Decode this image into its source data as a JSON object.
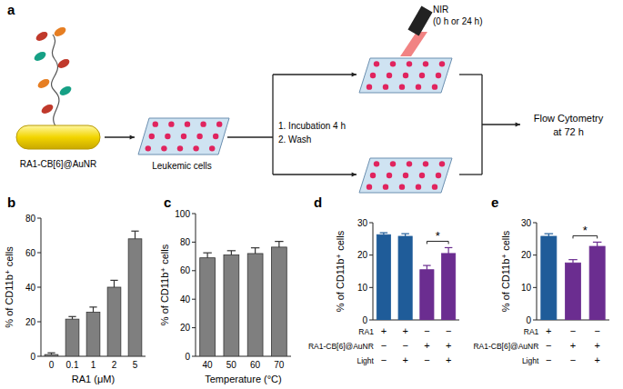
{
  "panel_a": {
    "label": "a",
    "nanoparticle": "RA1-CB[6]@AuNR",
    "cells": "Leukemic cells",
    "steps": [
      "1. Incubation 4 h",
      "2. Wash"
    ],
    "light": "NIR",
    "light_times": "(0 h or 24 h)",
    "readout": [
      "Flow Cytometry",
      "at 72 h"
    ]
  },
  "chart_data": [
    {
      "type": "bar",
      "title": "b",
      "x_label": "RA1 (μM)",
      "y_label": "% of CD11b⁺ cells",
      "categories": [
        "0",
        "0.1",
        "1",
        "2",
        "5"
      ],
      "values": [
        1,
        21.5,
        25.5,
        40,
        68
      ],
      "errors": [
        1,
        1.5,
        3,
        4,
        4.5
      ],
      "color": "#7f7f7f",
      "ylim": [
        0,
        80
      ],
      "yticks": [
        0,
        20,
        40,
        60,
        80
      ]
    },
    {
      "type": "bar",
      "title": "c",
      "x_label": "Temperature (°C)",
      "y_label": "% of CD11b⁺ cells",
      "categories": [
        "40",
        "50",
        "60",
        "70"
      ],
      "values": [
        69,
        71,
        72,
        76.5
      ],
      "errors": [
        3.5,
        3,
        4,
        4
      ],
      "color": "#7f7f7f",
      "ylim": [
        0,
        100
      ],
      "yticks": [
        0,
        20,
        40,
        60,
        80,
        100
      ]
    },
    {
      "type": "bar",
      "title": "d",
      "y_label": "% of CD11b⁺ cells",
      "categories": [
        null,
        null,
        null,
        null
      ],
      "values": [
        26.3,
        25.8,
        15.5,
        20.5
      ],
      "errors": [
        0.6,
        0.8,
        1.3,
        1.8
      ],
      "colors": [
        "#1f5c99",
        "#1f5c99",
        "#6b2d90",
        "#6b2d90"
      ],
      "ylim": [
        0,
        30
      ],
      "yticks": [
        0,
        10,
        20,
        30
      ],
      "conditions": [
        {
          "label": "RA1",
          "values": [
            "+",
            "+",
            "−",
            "−"
          ]
        },
        {
          "label": "RA1-CB[6]@AuNR",
          "values": [
            "−",
            "−",
            "+",
            "+"
          ]
        },
        {
          "label": "Light",
          "values": [
            "−",
            "+",
            "−",
            "+"
          ]
        }
      ],
      "significance": {
        "text": "*",
        "between": [
          2,
          3
        ]
      }
    },
    {
      "type": "bar",
      "title": "e",
      "y_label": "% of CD11b⁺ cells",
      "categories": [
        null,
        null,
        null
      ],
      "values": [
        25.8,
        17.6,
        22.7
      ],
      "errors": [
        0.8,
        1.0,
        1.3
      ],
      "colors": [
        "#1f5c99",
        "#6b2d90",
        "#6b2d90"
      ],
      "ylim": [
        0,
        30
      ],
      "yticks": [
        0,
        10,
        20,
        30
      ],
      "conditions": [
        {
          "label": "RA1",
          "values": [
            "+",
            "−",
            "−"
          ]
        },
        {
          "label": "RA1-CB[6]@AuNR",
          "values": [
            "−",
            "+",
            "+"
          ]
        },
        {
          "label": "Light",
          "values": [
            "−",
            "−",
            "+"
          ]
        }
      ],
      "significance": {
        "text": "*",
        "between": [
          1,
          2
        ]
      }
    }
  ]
}
